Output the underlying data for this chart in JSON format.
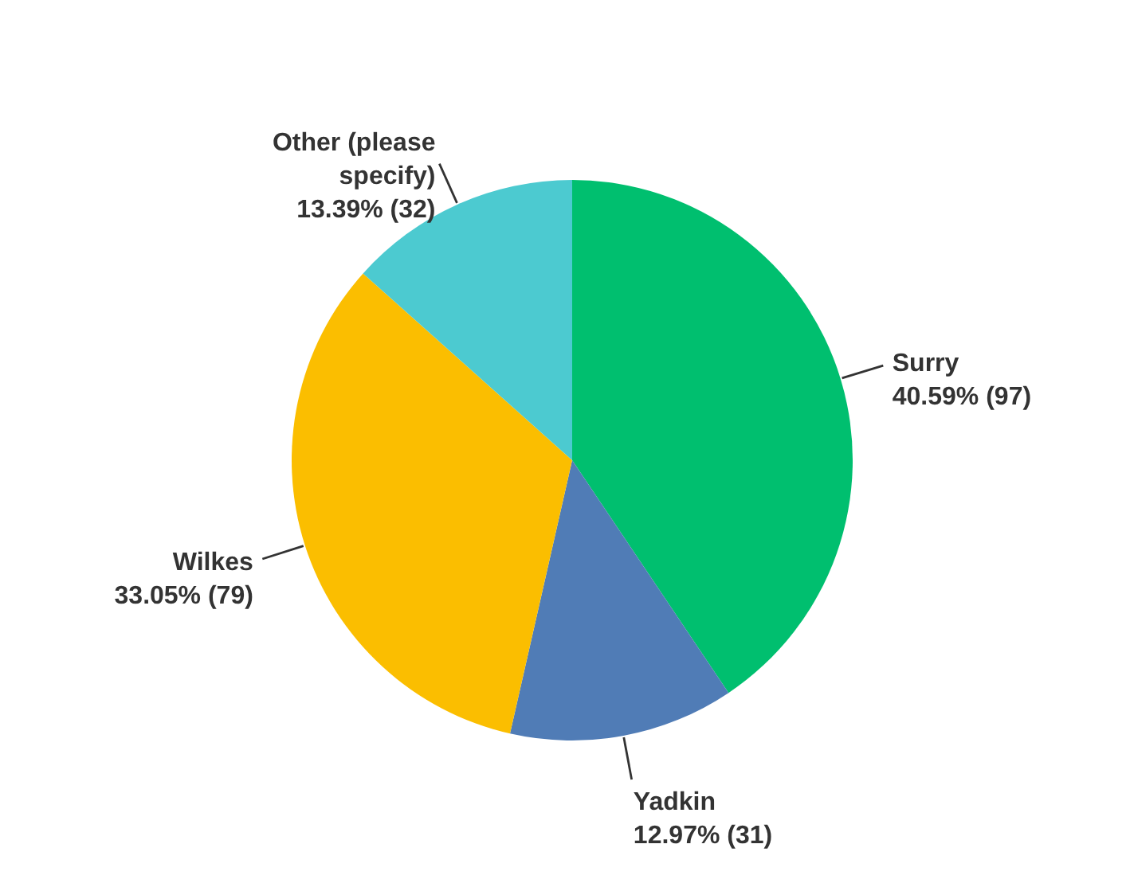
{
  "chart_data": {
    "type": "pie",
    "categories": [
      "Surry",
      "Yadkin",
      "Wilkes",
      "Other (please specify)"
    ],
    "values": [
      97,
      31,
      79,
      32
    ],
    "colors": [
      "#00bf6f",
      "#507cb6",
      "#fbbe00",
      "#4ccad0"
    ],
    "value_labels": [
      "40.59% (97)",
      "12.97% (31)",
      "33.05% (79)",
      "13.39% (32)"
    ]
  }
}
